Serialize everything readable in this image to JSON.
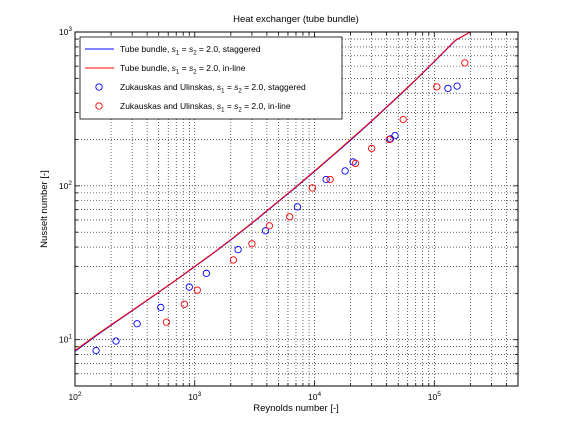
{
  "chart_data": {
    "type": "scatter",
    "title": "Heat exchanger (tube bundle)",
    "xlabel": "Reynolds number [-]",
    "ylabel": "Nusselt number [-]",
    "x_scale": "log",
    "y_scale": "log",
    "xlim": [
      100,
      500000
    ],
    "ylim": [
      5,
      1000
    ],
    "grid": true,
    "legend_position": "top-left",
    "x_ticks": [
      {
        "value": 100,
        "mantissa": "10",
        "exp": "2"
      },
      {
        "value": 1000,
        "mantissa": "10",
        "exp": "3"
      },
      {
        "value": 10000,
        "mantissa": "10",
        "exp": "4"
      },
      {
        "value": 100000,
        "mantissa": "10",
        "exp": "5"
      }
    ],
    "y_ticks": [
      {
        "value": 10,
        "mantissa": "10",
        "exp": "1"
      },
      {
        "value": 100,
        "mantissa": "10",
        "exp": "2"
      },
      {
        "value": 1000,
        "mantissa": "10",
        "exp": "3"
      }
    ],
    "series": [
      {
        "name_parts": [
          "Tube bundle, ",
          "s",
          "1",
          " = ",
          "s",
          "2",
          " = 2.0, staggered"
        ],
        "kind": "line",
        "color": "#0000ff",
        "x": [
          100,
          150,
          200,
          300,
          500,
          700,
          1000,
          1500,
          2000,
          3000,
          5000,
          7000,
          10000,
          15000,
          20000,
          30000,
          50000,
          70000,
          100000,
          150000,
          200000
        ],
        "y": [
          8.4,
          10.6,
          12.4,
          15.4,
          20.3,
          24.4,
          29.8,
          37.5,
          44.5,
          57.0,
          79.0,
          98.0,
          124,
          163,
          198,
          263,
          380,
          487,
          640,
          880,
          1000
        ]
      },
      {
        "name_parts": [
          "Tube bundle, ",
          "s",
          "1",
          " = ",
          "s",
          "2",
          " = 2.0, in-line"
        ],
        "kind": "line",
        "color": "#ff0000",
        "x": [
          100,
          150,
          200,
          300,
          500,
          700,
          1000,
          1500,
          2000,
          3000,
          5000,
          7000,
          10000,
          15000,
          20000,
          30000,
          50000,
          70000,
          100000,
          150000,
          200000
        ],
        "y": [
          8.5,
          10.7,
          12.5,
          15.5,
          20.4,
          24.5,
          30.0,
          37.7,
          44.8,
          57.4,
          79.5,
          98.6,
          125,
          164,
          200,
          265,
          383,
          490,
          645,
          885,
          1000
        ]
      },
      {
        "name_parts": [
          "Zukauskas and Ulinskas, ",
          "s",
          "1",
          " = ",
          "s",
          "2",
          " = 2.0, staggered"
        ],
        "kind": "marker",
        "color": "#0000ff",
        "x": [
          150,
          220,
          330,
          520,
          900,
          1250,
          2300,
          3900,
          7200,
          12500,
          18000,
          21000,
          43000,
          47000,
          130000,
          155000
        ],
        "y": [
          8.5,
          9.8,
          12.7,
          16.2,
          22.0,
          27.0,
          38.5,
          51.0,
          73.0,
          110,
          125,
          143,
          202,
          212,
          430,
          445
        ]
      },
      {
        "name_parts": [
          "Zukauskas and Ulinskas, ",
          "s",
          "1",
          " = ",
          "s",
          "2",
          " = 2.0, in-line"
        ],
        "kind": "marker",
        "color": "#ff0000",
        "x": [
          580,
          820,
          1050,
          2100,
          3000,
          4200,
          6200,
          9600,
          13500,
          22000,
          30000,
          42000,
          55000,
          105000,
          180000
        ],
        "y": [
          13.0,
          17.0,
          21.0,
          33.0,
          42.0,
          55.0,
          63.0,
          97.0,
          110,
          140,
          175,
          200,
          270,
          440,
          630
        ]
      }
    ]
  }
}
